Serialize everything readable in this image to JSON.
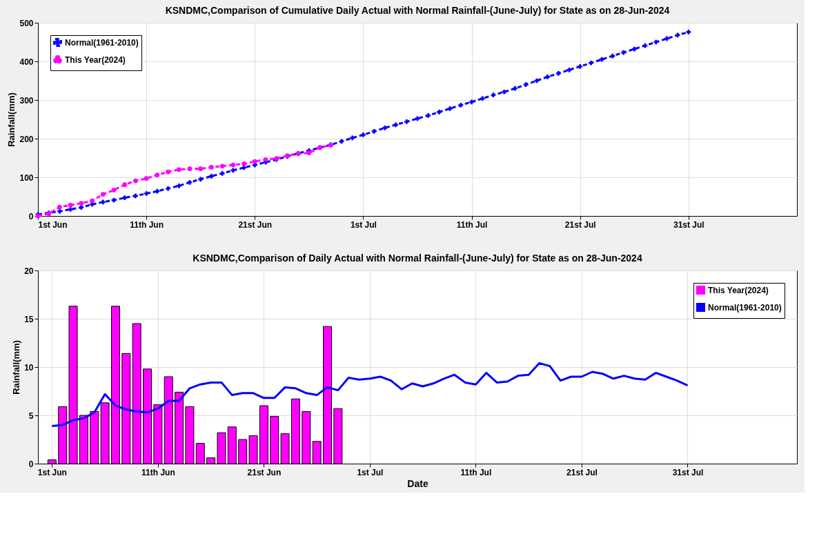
{
  "chart_data": [
    {
      "type": "line",
      "title": "KSNDMC,Comparison of Cumulative Daily Actual with Normal Rainfall-(June-July) for State as on 28-Jun-2024",
      "ylabel": "Rainfall(mm)",
      "xlim": [
        "2024-06-01",
        "2024-08-10"
      ],
      "xticks": [
        {
          "value": "2024-06-01",
          "label": "1st Jun"
        },
        {
          "value": "2024-06-11",
          "label": "11th Jun"
        },
        {
          "value": "2024-06-21",
          "label": "21st Jun"
        },
        {
          "value": "2024-07-01",
          "label": "1st Jul"
        },
        {
          "value": "2024-07-11",
          "label": "11th Jul"
        },
        {
          "value": "2024-07-21",
          "label": "21st Jul"
        },
        {
          "value": "2024-07-31",
          "label": "31st Jul"
        }
      ],
      "ylim": [
        0,
        500
      ],
      "yticks": [
        0,
        100,
        200,
        300,
        400,
        500
      ],
      "grid": true,
      "legend": "top left",
      "line_style": "dashed",
      "series": [
        {
          "name": "Normal(1961-2010)",
          "color": "#0000ff",
          "marker": "cross",
          "x": [
            "2024-06-01",
            "2024-06-02",
            "2024-06-03",
            "2024-06-04",
            "2024-06-05",
            "2024-06-06",
            "2024-06-07",
            "2024-06-08",
            "2024-06-09",
            "2024-06-10",
            "2024-06-11",
            "2024-06-12",
            "2024-06-13",
            "2024-06-14",
            "2024-06-15",
            "2024-06-16",
            "2024-06-17",
            "2024-06-18",
            "2024-06-19",
            "2024-06-20",
            "2024-06-21",
            "2024-06-22",
            "2024-06-23",
            "2024-06-24",
            "2024-06-25",
            "2024-06-26",
            "2024-06-27",
            "2024-06-28",
            "2024-06-29",
            "2024-06-30",
            "2024-07-01",
            "2024-07-02",
            "2024-07-03",
            "2024-07-04",
            "2024-07-05",
            "2024-07-06",
            "2024-07-07",
            "2024-07-08",
            "2024-07-09",
            "2024-07-10",
            "2024-07-11",
            "2024-07-12",
            "2024-07-13",
            "2024-07-14",
            "2024-07-15",
            "2024-07-16",
            "2024-07-17",
            "2024-07-18",
            "2024-07-19",
            "2024-07-20",
            "2024-07-21",
            "2024-07-22",
            "2024-07-23",
            "2024-07-24",
            "2024-07-25",
            "2024-07-26",
            "2024-07-27",
            "2024-07-28",
            "2024-07-29",
            "2024-07-30",
            "2024-07-31"
          ],
          "values": [
            4,
            8,
            12,
            17,
            22,
            30,
            36,
            41,
            47,
            52,
            58,
            64,
            71,
            78,
            87,
            95,
            103,
            110,
            118,
            125,
            132,
            139,
            146,
            154,
            162,
            169,
            177,
            184,
            193,
            202,
            210,
            219,
            228,
            236,
            244,
            252,
            260,
            269,
            278,
            287,
            295,
            304,
            313,
            321,
            330,
            340,
            350,
            360,
            369,
            378,
            387,
            396,
            405,
            414,
            423,
            432,
            441,
            450,
            459,
            468,
            476
          ]
        },
        {
          "name": "This Year(2024)",
          "color": "#ff00ff",
          "marker": "circle",
          "x": [
            "2024-06-01",
            "2024-06-02",
            "2024-06-03",
            "2024-06-04",
            "2024-06-05",
            "2024-06-06",
            "2024-06-07",
            "2024-06-08",
            "2024-06-09",
            "2024-06-10",
            "2024-06-11",
            "2024-06-12",
            "2024-06-13",
            "2024-06-14",
            "2024-06-15",
            "2024-06-16",
            "2024-06-17",
            "2024-06-18",
            "2024-06-19",
            "2024-06-20",
            "2024-06-21",
            "2024-06-22",
            "2024-06-23",
            "2024-06-24",
            "2024-06-25",
            "2024-06-26",
            "2024-06-27",
            "2024-06-28"
          ],
          "values": [
            0,
            6,
            23,
            28,
            33,
            39,
            56,
            67,
            81,
            91,
            97,
            106,
            114,
            120,
            122,
            122,
            126,
            129,
            132,
            135,
            141,
            146,
            149,
            156,
            161,
            163,
            177,
            183
          ]
        }
      ]
    },
    {
      "type": "bar",
      "title": "KSNDMC,Comparison of Daily Actual with Normal Rainfall-(June-July) for State as on 28-Jun-2024",
      "ylabel": "Rainfall(mm)",
      "xlabel": "Date",
      "xlim": [
        "2024-05-31",
        "2024-08-10"
      ],
      "xticks": [
        {
          "value": "2024-06-01",
          "label": "1st Jun"
        },
        {
          "value": "2024-06-11",
          "label": "11th Jun"
        },
        {
          "value": "2024-06-21",
          "label": "21st Jun"
        },
        {
          "value": "2024-07-01",
          "label": "1st Jul"
        },
        {
          "value": "2024-07-11",
          "label": "11th Jul"
        },
        {
          "value": "2024-07-21",
          "label": "21st Jul"
        },
        {
          "value": "2024-07-31",
          "label": "31st Jul"
        }
      ],
      "ylim": [
        0,
        20
      ],
      "yticks": [
        0,
        5,
        10,
        15,
        20
      ],
      "grid": true,
      "legend": "top right",
      "series": [
        {
          "name": "This Year(2024)",
          "color": "#ff00ff",
          "type": "bar",
          "x": [
            "2024-06-01",
            "2024-06-02",
            "2024-06-03",
            "2024-06-04",
            "2024-06-05",
            "2024-06-06",
            "2024-06-07",
            "2024-06-08",
            "2024-06-09",
            "2024-06-10",
            "2024-06-11",
            "2024-06-12",
            "2024-06-13",
            "2024-06-14",
            "2024-06-15",
            "2024-06-16",
            "2024-06-17",
            "2024-06-18",
            "2024-06-19",
            "2024-06-20",
            "2024-06-21",
            "2024-06-22",
            "2024-06-23",
            "2024-06-24",
            "2024-06-25",
            "2024-06-26",
            "2024-06-27",
            "2024-06-28"
          ],
          "values": [
            0.4,
            5.9,
            16.3,
            5.0,
            5.4,
            6.3,
            16.3,
            11.4,
            14.5,
            9.8,
            6.1,
            9.0,
            7.4,
            5.9,
            2.1,
            0.6,
            3.2,
            3.8,
            2.5,
            2.9,
            6.0,
            4.9,
            3.1,
            6.7,
            5.4,
            2.3,
            14.2,
            5.7
          ]
        },
        {
          "name": "Normal(1961-2010)",
          "color": "#0000ff",
          "type": "line",
          "line_style": "solid",
          "x": [
            "2024-06-01",
            "2024-06-02",
            "2024-06-03",
            "2024-06-04",
            "2024-06-05",
            "2024-06-06",
            "2024-06-07",
            "2024-06-08",
            "2024-06-09",
            "2024-06-10",
            "2024-06-11",
            "2024-06-12",
            "2024-06-13",
            "2024-06-14",
            "2024-06-15",
            "2024-06-16",
            "2024-06-17",
            "2024-06-18",
            "2024-06-19",
            "2024-06-20",
            "2024-06-21",
            "2024-06-22",
            "2024-06-23",
            "2024-06-24",
            "2024-06-25",
            "2024-06-26",
            "2024-06-27",
            "2024-06-28",
            "2024-06-29",
            "2024-06-30",
            "2024-07-01",
            "2024-07-02",
            "2024-07-03",
            "2024-07-04",
            "2024-07-05",
            "2024-07-06",
            "2024-07-07",
            "2024-07-08",
            "2024-07-09",
            "2024-07-10",
            "2024-07-11",
            "2024-07-12",
            "2024-07-13",
            "2024-07-14",
            "2024-07-15",
            "2024-07-16",
            "2024-07-17",
            "2024-07-18",
            "2024-07-19",
            "2024-07-20",
            "2024-07-21",
            "2024-07-22",
            "2024-07-23",
            "2024-07-24",
            "2024-07-25",
            "2024-07-26",
            "2024-07-27",
            "2024-07-28",
            "2024-07-29",
            "2024-07-30",
            "2024-07-31"
          ],
          "values": [
            3.9,
            4.0,
            4.5,
            4.7,
            5.3,
            7.2,
            6.0,
            5.6,
            5.4,
            5.3,
            5.7,
            6.5,
            6.5,
            7.8,
            8.2,
            8.4,
            8.4,
            7.1,
            7.3,
            7.3,
            6.8,
            6.8,
            7.9,
            7.8,
            7.3,
            7.1,
            7.9,
            7.6,
            8.9,
            8.7,
            8.8,
            9.0,
            8.6,
            7.7,
            8.3,
            8.0,
            8.3,
            8.8,
            9.2,
            8.4,
            8.2,
            9.4,
            8.4,
            8.5,
            9.1,
            9.2,
            10.4,
            10.1,
            8.6,
            9.0,
            9.0,
            9.5,
            9.3,
            8.8,
            9.1,
            8.8,
            8.7,
            9.4,
            9.0,
            8.6,
            8.1
          ]
        }
      ]
    }
  ]
}
